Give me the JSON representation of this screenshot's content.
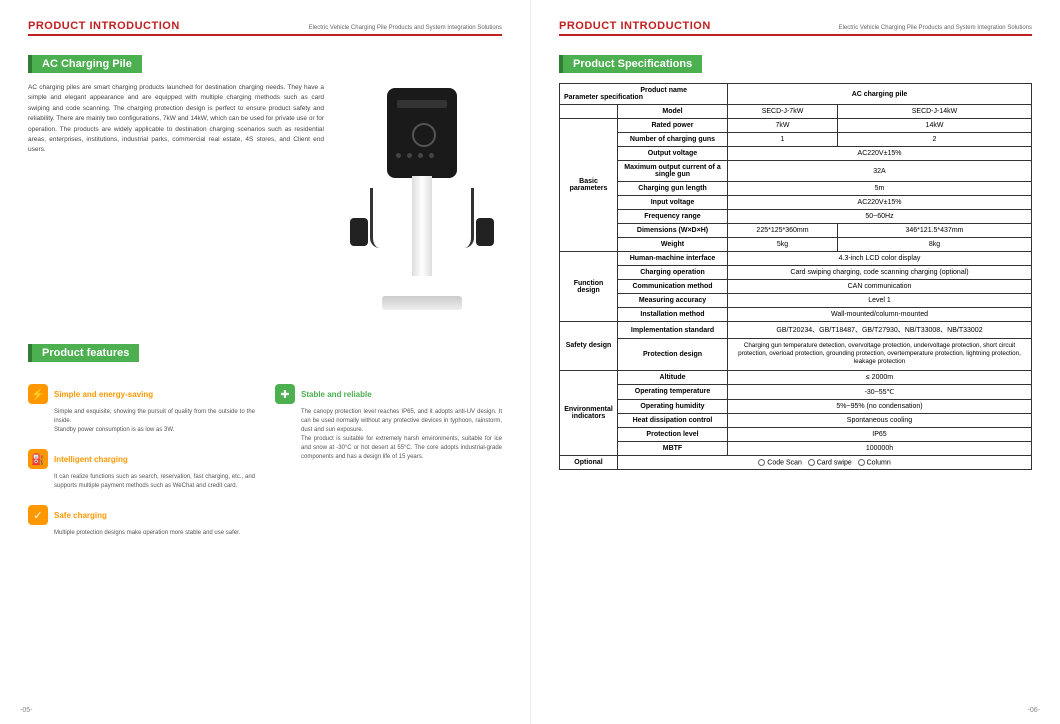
{
  "header": {
    "title": "PRODUCT INTRODUCTION",
    "subtitle": "Electric Vehicle Charging Pile Products and System Integration Solutions"
  },
  "left": {
    "section1_title": "AC Charging Pile",
    "intro": "AC charging piles are smart charging products launched for destination charging needs. They have a simple and elegant appearance and are equipped with multiple charging methods such as card swiping and code scanning. The charging protection design is perfect to ensure product safety and reliability. There are mainly two configurations, 7kW and 14kW, which can be used for private use or for operation. The products are widely applicable to destination charging scenarios such as residential areas, enterprises, institutions, industrial parks, commercial real estate, 4S stores, and Client end users.",
    "section2_title": "Product features",
    "features": [
      {
        "color": "o",
        "icon": "⚡",
        "title": "Simple and energy-saving",
        "body": "Simple and exquisite, showing the pursuit of quality from the outside to the inside.\nStandby power consumption is as low as 3W."
      },
      {
        "color": "o",
        "icon": "⛽",
        "title": "Intelligent charging",
        "body": "It can realize functions such as search, reservation, fast charging, etc., and supports multiple payment methods such as WeChat and credit card."
      },
      {
        "color": "o",
        "icon": "✓",
        "title": "Safe charging",
        "body": "Multiple protection designs make operation more stable and use safer."
      },
      {
        "color": "g",
        "icon": "✚",
        "title": "Stable and reliable",
        "body": "The canopy protection level reaches IP65, and it adopts anti-UV design. It can be used normally without any protective devices in typhoon, rainstorm, dust and sun exposure.\nThe product is suitable for extremely harsh environments, suitable for ice and snow at -30°C or hot desert at 55°C. The core adopts industrial-grade components and has a design life of 15 years."
      }
    ],
    "pagenum": "05"
  },
  "right": {
    "section_title": "Product Specifications",
    "spec": {
      "header_productname": "Product name",
      "header_paramspec": "Parameter specification",
      "header_value": "AC charging pile",
      "groups": [
        {
          "group": "",
          "rows": [
            {
              "label": "Model",
              "v1": "SECD-J-7kW",
              "v2": "SECD-J-14kW"
            }
          ]
        },
        {
          "group": "Basic parameters",
          "rows": [
            {
              "label": "Rated power",
              "v1": "7kW",
              "v2": "14kW"
            },
            {
              "label": "Number of charging guns",
              "v1": "1",
              "v2": "2"
            },
            {
              "label": "Output voltage",
              "merged": "AC220V±15%"
            },
            {
              "label": "Maximum output current of a single gun",
              "merged": "32A"
            },
            {
              "label": "Charging gun length",
              "merged": "5m"
            },
            {
              "label": "Input voltage",
              "merged": "AC220V±15%"
            },
            {
              "label": "Frequency range",
              "merged": "50~60Hz"
            },
            {
              "label": "Dimensions (W×D×H)",
              "v1": "225*125*360mm",
              "v2": "346*121.5*437mm"
            },
            {
              "label": "Weight",
              "v1": "5kg",
              "v2": "8kg"
            }
          ]
        },
        {
          "group": "Function design",
          "rows": [
            {
              "label": "Human-machine interface",
              "merged": "4.3-inch LCD color display"
            },
            {
              "label": "Charging operation",
              "merged": "Card swiping charging, code scanning charging (optional)"
            },
            {
              "label": "Communication method",
              "merged": "CAN communication"
            },
            {
              "label": "Measuring accuracy",
              "merged": "Level 1"
            },
            {
              "label": "Installation method",
              "merged": "Wall-mounted/column-mounted"
            }
          ]
        },
        {
          "group": "Safety design",
          "rows": [
            {
              "label": "Implementation standard",
              "merged": "GB/T20234、GB/T18487、GB/T27930、NB/T33008、NB/T33002"
            },
            {
              "label": "Protection design",
              "merged": "Charging gun temperature detection, overvoltage protection, undervoltage protection, short circuit protection, overload protection, grounding protection, overtemperature protection, lightning protection, leakage protection",
              "prot": true
            }
          ]
        },
        {
          "group": "Environmental indicators",
          "rows": [
            {
              "label": "Altitude",
              "merged": "≤ 2000m"
            },
            {
              "label": "Operating temperature",
              "merged": "-30~55℃"
            },
            {
              "label": "Operating humidity",
              "merged": "5%~95% (no condensation)"
            },
            {
              "label": "Heat dissipation control",
              "merged": "Spontaneous cooling"
            },
            {
              "label": "Protection level",
              "merged": "IP65"
            },
            {
              "label": "MBTF",
              "merged": "100000h"
            }
          ]
        }
      ],
      "optional_label": "Optional",
      "optional_opts": [
        "Code Scan",
        "Card swipe",
        "Column"
      ]
    },
    "pagenum": "06"
  }
}
